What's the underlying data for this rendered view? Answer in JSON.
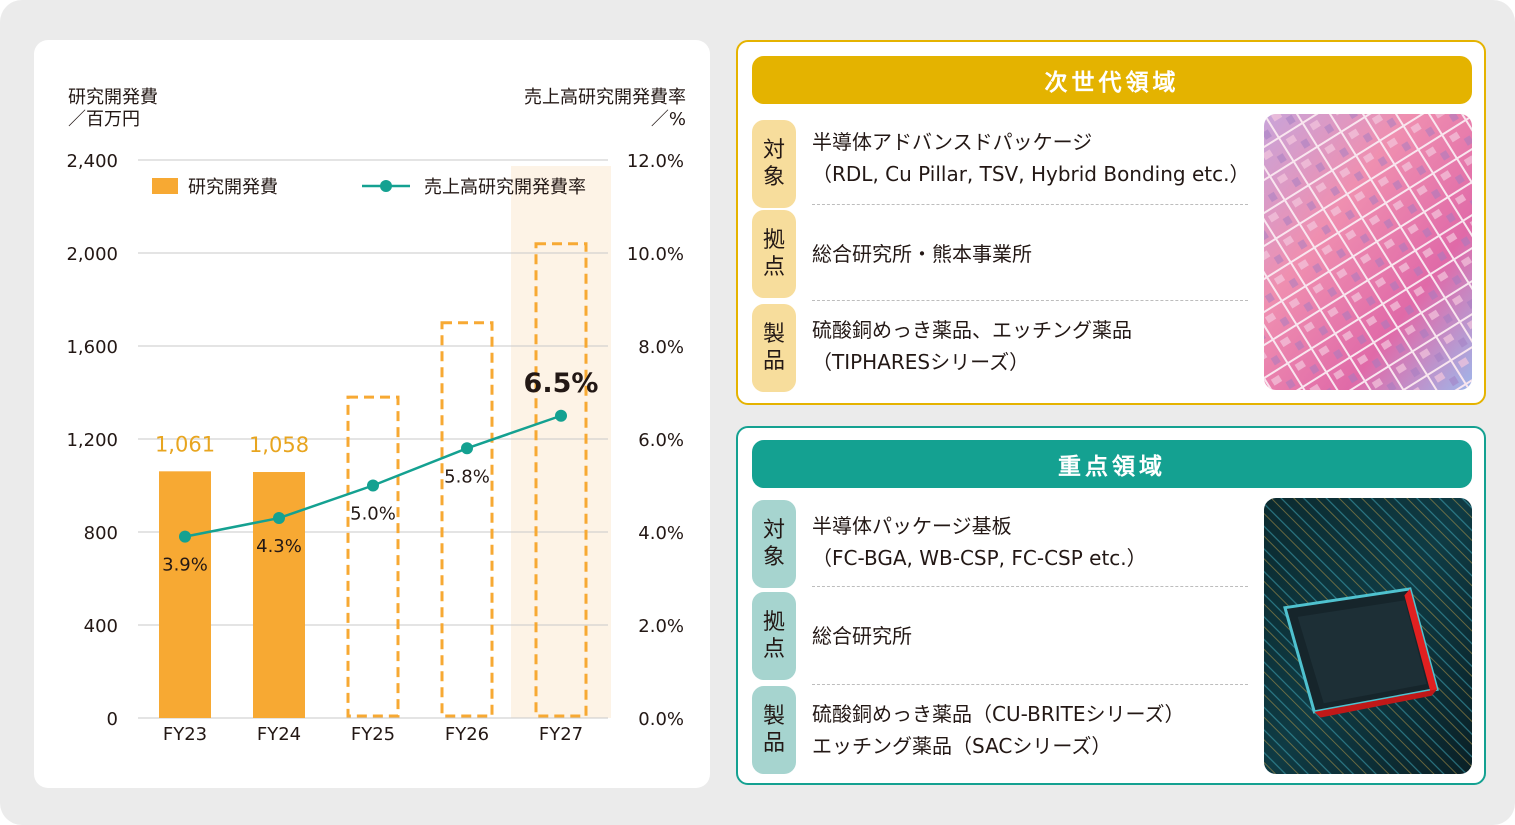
{
  "chart_data": {
    "type": "bar",
    "categories": [
      "FY23",
      "FY24",
      "FY25",
      "FY26",
      "FY27"
    ],
    "y_left": {
      "title_line1": "研究開発費",
      "title_line2": "／百万円",
      "ticks": [
        "2,400",
        "2,000",
        "1,600",
        "1,200",
        "800",
        "400",
        "0"
      ],
      "range": [
        0,
        2400
      ]
    },
    "y_right": {
      "title_line1": "売上高研究開発費率",
      "title_line2": "／%",
      "ticks": [
        "12.0%",
        "10.0%",
        "8.0%",
        "6.0%",
        "4.0%",
        "2.0%",
        "0.0%"
      ],
      "range": [
        0,
        12
      ]
    },
    "series": [
      {
        "name": "研究開発費",
        "kind": "bar",
        "color": "#f7a933",
        "values": [
          1061,
          1058,
          null,
          null,
          null
        ],
        "labels": [
          "1,061",
          "1,058",
          "",
          "",
          ""
        ],
        "target_values": [
          null,
          null,
          1380,
          1700,
          2040
        ]
      },
      {
        "name": "売上高研究開発費率",
        "kind": "line",
        "color": "#14a191",
        "values": [
          3.9,
          4.3,
          5.0,
          5.8,
          6.5
        ],
        "labels": [
          "3.9%",
          "4.3%",
          "5.0%",
          "5.8%",
          "6.5%"
        ]
      }
    ],
    "highlight_category": "FY27",
    "grid": true,
    "legend": "top"
  },
  "panels": {
    "next_gen": {
      "title": "次世代領域",
      "rows": [
        {
          "tag": [
            "対",
            "象"
          ],
          "lines": [
            "半導体アドバンスドパッケージ",
            "（RDL, Cu Pillar, TSV, Hybrid Bonding etc.）"
          ]
        },
        {
          "tag": [
            "拠",
            "点"
          ],
          "lines": [
            "総合研究所・熊本事業所"
          ]
        },
        {
          "tag": [
            "製",
            "品"
          ],
          "lines": [
            "硫酸銅めっき薬品、エッチング薬品",
            "（TIPHARESシリーズ）"
          ]
        }
      ]
    },
    "focus": {
      "title": "重点領域",
      "rows": [
        {
          "tag": [
            "対",
            "象"
          ],
          "lines": [
            "半導体パッケージ基板",
            "（FC-BGA, WB-CSP, FC-CSP etc.）"
          ]
        },
        {
          "tag": [
            "拠",
            "点"
          ],
          "lines": [
            "総合研究所"
          ]
        },
        {
          "tag": [
            "製",
            "品"
          ],
          "lines": [
            "硫酸銅めっき薬品（CU-BRITEシリーズ）",
            "エッチング薬品（SACシリーズ）"
          ]
        }
      ]
    }
  }
}
